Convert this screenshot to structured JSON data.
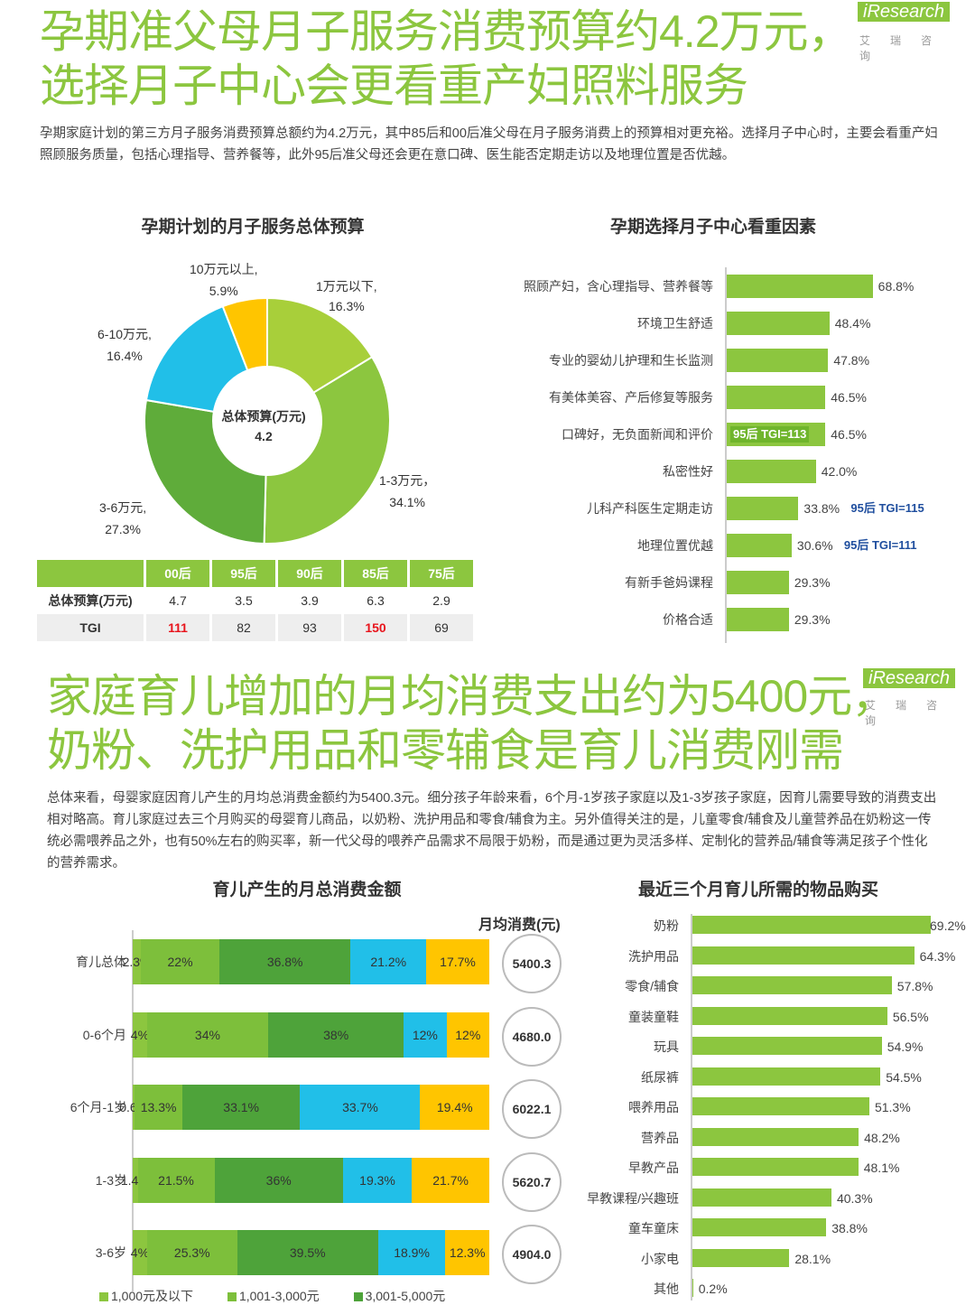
{
  "section1": {
    "headline_line1": "孕期准父母月子服务消费预算约4.2万元，",
    "headline_line2": "选择月子中心会更看重产妇照料服务",
    "logo": "iResearch",
    "logo_sub": "艾瑞咨询",
    "paragraph": "孕期家庭计划的第三方月子服务消费预算总额约为4.2万元，其中85后和00后准父母在月子服务消费上的预算相对更充裕。选择月子中心时，主要会看重产妇照顾服务质量，包括心理指导、营养餐等，此外95后准父母还会更在意口碑、医生能否定期走访以及地理位置是否优越。",
    "donut_title": "孕期计划的月子服务总体预算",
    "donut_center_label": "总体预算(万元)",
    "donut_center_value": "4.2",
    "donut_labels": [
      {
        "name": "1万元以下,",
        "pct": "16.3%"
      },
      {
        "name": "1-3万元，",
        "pct": "34.1%"
      },
      {
        "name": "3-6万元,",
        "pct": "27.3%"
      },
      {
        "name": "6-10万元,",
        "pct": "16.4%"
      },
      {
        "name": "10万元以上,",
        "pct": "5.9%"
      }
    ],
    "table": {
      "headers": [
        "",
        "00后",
        "95后",
        "90后",
        "85后",
        "75后"
      ],
      "row1_label": "总体预算(万元)",
      "row1": [
        "4.7",
        "3.5",
        "3.9",
        "6.3",
        "2.9"
      ],
      "row2_label": "TGI",
      "row2": [
        "111",
        "82",
        "93",
        "150",
        "69"
      ],
      "highlight_color": "#e8141c"
    },
    "bar_title": "孕期选择月子中心看重因素",
    "bars": [
      {
        "label": "照顾产妇，含心理指导、营养餐等",
        "value": "68.8%",
        "tgi_before": "",
        "tgi_after": ""
      },
      {
        "label": "环境卫生舒适",
        "value": "48.4%",
        "tgi_before": "",
        "tgi_after": ""
      },
      {
        "label": "专业的婴幼儿护理和生长监测",
        "value": "47.8%",
        "tgi_before": "",
        "tgi_after": ""
      },
      {
        "label": "有美体美容、产后修复等服务",
        "value": "46.5%",
        "tgi_before": "",
        "tgi_after": ""
      },
      {
        "label": "口碑好，无负面新闻和评价",
        "value": "46.5%",
        "tgi_before": "95后 TGI=113",
        "tgi_after": ""
      },
      {
        "label": "私密性好",
        "value": "42.0%",
        "tgi_before": "",
        "tgi_after": ""
      },
      {
        "label": "儿科产科医生定期走访",
        "value": "33.8%",
        "tgi_before": "",
        "tgi_after": "95后 TGI=115"
      },
      {
        "label": "地理位置优越",
        "value": "30.6%",
        "tgi_before": "",
        "tgi_after": "95后 TGI=111"
      },
      {
        "label": "有新手爸妈课程",
        "value": "29.3%",
        "tgi_before": "",
        "tgi_after": ""
      },
      {
        "label": "价格合适",
        "value": "29.3%",
        "tgi_before": "",
        "tgi_after": ""
      }
    ]
  },
  "section2": {
    "headline_line1": "家庭育儿增加的月均消费支出约为5400元，",
    "headline_line2": "奶粉、洗护用品和零辅食是育儿消费刚需",
    "logo": "iResearch",
    "logo_sub": "艾瑞咨询",
    "paragraph": "总体来看，母婴家庭因育儿产生的月均总消费金额约为5400.3元。细分孩子年龄来看，6个月-1岁孩子家庭以及1-3岁孩子家庭，因育儿需要导致的消费支出相对略高。育儿家庭过去三个月购买的母婴育儿商品，以奶粉、洗护用品和零食/辅食为主。另外值得关注的是，儿童零食/辅食及儿童营养品在奶粉这一传统必需喂养品之外，也有50%左右的购买率，新一代父母的喂养产品需求不局限于奶粉，而是通过更为灵活多样、定制化的营养品/辅食等满足孩子个性化的营养需求。",
    "stack_title": "育儿产生的月总消费金额",
    "monthly_header": "月均消费(元)",
    "purchase_title": "最近三个月育儿所需的物品购买"
  },
  "chart_data": [
    {
      "type": "pie",
      "title": "孕期计划的月子服务总体预算",
      "categories": [
        "1万元以下",
        "1-3万元",
        "3-6万元",
        "6-10万元",
        "10万元以上"
      ],
      "values": [
        16.3,
        34.1,
        27.3,
        16.4,
        5.9
      ],
      "colors": [
        "#a8cf3a",
        "#8cc63f",
        "#5fac3a",
        "#21bfe8",
        "#ffc500"
      ]
    },
    {
      "type": "bar",
      "title": "孕期选择月子中心看重因素",
      "categories": [
        "照顾产妇，含心理指导、营养餐等",
        "环境卫生舒适",
        "专业的婴幼儿护理和生长监测",
        "有美体美容、产后修复等服务",
        "口碑好，无负面新闻和评价",
        "私密性好",
        "儿科产科医生定期走访",
        "地理位置优越",
        "有新手爸妈课程",
        "价格合适"
      ],
      "values": [
        68.8,
        48.4,
        47.8,
        46.5,
        46.5,
        42.0,
        33.8,
        30.6,
        29.3,
        29.3
      ],
      "color": "#8cc63f"
    },
    {
      "type": "bar",
      "title": "育儿产生的月总消费金额",
      "categories": [
        "育儿总体",
        "0-6个月",
        "6个月-1岁",
        "1-3岁",
        "3-6岁"
      ],
      "series": [
        {
          "name": "1,000元及以下",
          "values": [
            2.3,
            4,
            0.6,
            1.4,
            4
          ],
          "labels": [
            "2.3%",
            "4%",
            "0.6%",
            "1.4%",
            "4%"
          ],
          "color": "#8cc63f"
        },
        {
          "name": "1,001-3,000元",
          "values": [
            22,
            34,
            13.3,
            21.5,
            25.3
          ],
          "labels": [
            "22%",
            "34%",
            "13.3%",
            "21.5%",
            "25.3%"
          ],
          "color": "#7dbf3b"
        },
        {
          "name": "3,001-5,000元",
          "values": [
            36.8,
            38,
            33.1,
            36,
            39.5
          ],
          "labels": [
            "36.8%",
            "38%",
            "33.1%",
            "36%",
            "39.5%"
          ],
          "color": "#4ea33a"
        },
        {
          "name": "",
          "values": [
            21.2,
            12,
            33.7,
            19.3,
            18.9
          ],
          "labels": [
            "21.2%",
            "12%",
            "33.7%",
            "19.3%",
            "18.9%"
          ],
          "color": "#21bfe8"
        },
        {
          "name": "",
          "values": [
            17.7,
            12,
            19.4,
            21.7,
            12.3
          ],
          "labels": [
            "17.7%",
            "12%",
            "19.4%",
            "21.7%",
            "12.3%"
          ],
          "color": "#ffc500"
        }
      ],
      "monthly_avg": [
        "5400.3",
        "4680.0",
        "6022.1",
        "5620.7",
        "4904.0"
      ]
    },
    {
      "type": "bar",
      "title": "最近三个月育儿所需的物品购买",
      "categories": [
        "奶粉",
        "洗护用品",
        "零食/辅食",
        "童装童鞋",
        "玩具",
        "纸尿裤",
        "喂养用品",
        "营养品",
        "早教产品",
        "早教课程/兴趣班",
        "童车童床",
        "小家电",
        "其他"
      ],
      "values": [
        69.2,
        64.3,
        57.8,
        56.5,
        54.9,
        54.5,
        51.3,
        48.2,
        48.1,
        40.3,
        38.8,
        28.1,
        0.2
      ],
      "labels": [
        "69.2%",
        "64.3%",
        "57.8%",
        "56.5%",
        "54.9%",
        "54.5%",
        "51.3%",
        "48.2%",
        "48.1%",
        "40.3%",
        "38.8%",
        "28.1%",
        "0.2%"
      ],
      "color": "#8cc63f"
    }
  ]
}
